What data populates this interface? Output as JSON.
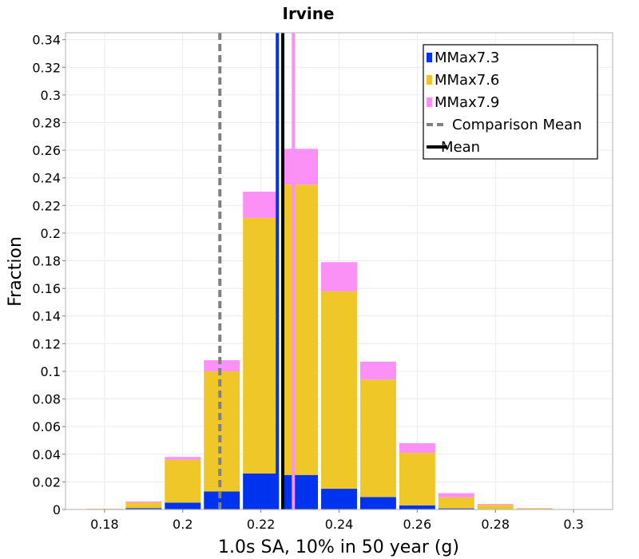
{
  "chart_data": {
    "type": "bar",
    "title": "Irvine",
    "xlabel": "1.0s SA, 10% in 50 year (g)",
    "ylabel": "Fraction",
    "xlim": [
      0.17,
      0.31
    ],
    "ylim": [
      0,
      0.345
    ],
    "xticks": [
      "0.18",
      "0.2",
      "0.22",
      "0.24",
      "0.26",
      "0.28",
      "0.3"
    ],
    "xtick_values": [
      0.18,
      0.2,
      0.22,
      0.24,
      0.26,
      0.28,
      0.3
    ],
    "yticks": [
      "0",
      "0.02",
      "0.04",
      "0.06",
      "0.08",
      "0.1",
      "0.12",
      "0.14",
      "0.16",
      "0.18",
      "0.2",
      "0.22",
      "0.24",
      "0.26",
      "0.28",
      "0.3",
      "0.32",
      "0.34"
    ],
    "ytick_values": [
      0,
      0.02,
      0.04,
      0.06,
      0.08,
      0.1,
      0.12,
      0.14,
      0.16,
      0.18,
      0.2,
      0.22,
      0.24,
      0.26,
      0.28,
      0.3,
      0.32,
      0.34
    ],
    "bin_width": 0.01,
    "bin_centers": [
      0.18,
      0.19,
      0.2,
      0.21,
      0.22,
      0.23,
      0.24,
      0.25,
      0.26,
      0.27,
      0.28,
      0.29
    ],
    "stacked": true,
    "series": [
      {
        "name": "MMax7.3",
        "color": "#0033ee",
        "values": [
          0.0003,
          0.001,
          0.005,
          0.013,
          0.026,
          0.025,
          0.015,
          0.009,
          0.003,
          0.0008,
          0.0003,
          0.0001
        ]
      },
      {
        "name": "MMax7.6",
        "color": "#f0c728",
        "values": [
          0.0002,
          0.004,
          0.031,
          0.087,
          0.185,
          0.21,
          0.143,
          0.085,
          0.038,
          0.008,
          0.003,
          0.0007
        ]
      },
      {
        "name": "MMax7.9",
        "color": "#fb90f7",
        "values": [
          0.0001,
          0.0008,
          0.002,
          0.008,
          0.019,
          0.026,
          0.021,
          0.013,
          0.007,
          0.003,
          0.0007,
          0.0002
        ]
      }
    ],
    "lines": [
      {
        "name": "Comparison Mean",
        "x": 0.2095,
        "color": "#808080",
        "style": "dashed"
      },
      {
        "name": "MMax7.3 Mean",
        "x": 0.2242,
        "color": "#0033ee",
        "style": "solid"
      },
      {
        "name": "MMax7.9 Mean",
        "x": 0.2283,
        "color": "#fb90f7",
        "style": "solid"
      },
      {
        "name": "Mean",
        "x": 0.2256,
        "color": "#000000",
        "style": "solid"
      }
    ],
    "legend": {
      "position": "top-right",
      "entries": [
        {
          "label": "MMax7.3",
          "kind": "patch",
          "color": "#0033ee"
        },
        {
          "label": "MMax7.6",
          "kind": "patch",
          "color": "#f0c728"
        },
        {
          "label": "MMax7.9",
          "kind": "patch",
          "color": "#fb90f7"
        },
        {
          "label": "Comparison Mean",
          "kind": "dashed",
          "color": "#808080"
        },
        {
          "label": "Mean",
          "kind": "solid",
          "color": "#000000"
        }
      ]
    },
    "grid": true
  }
}
